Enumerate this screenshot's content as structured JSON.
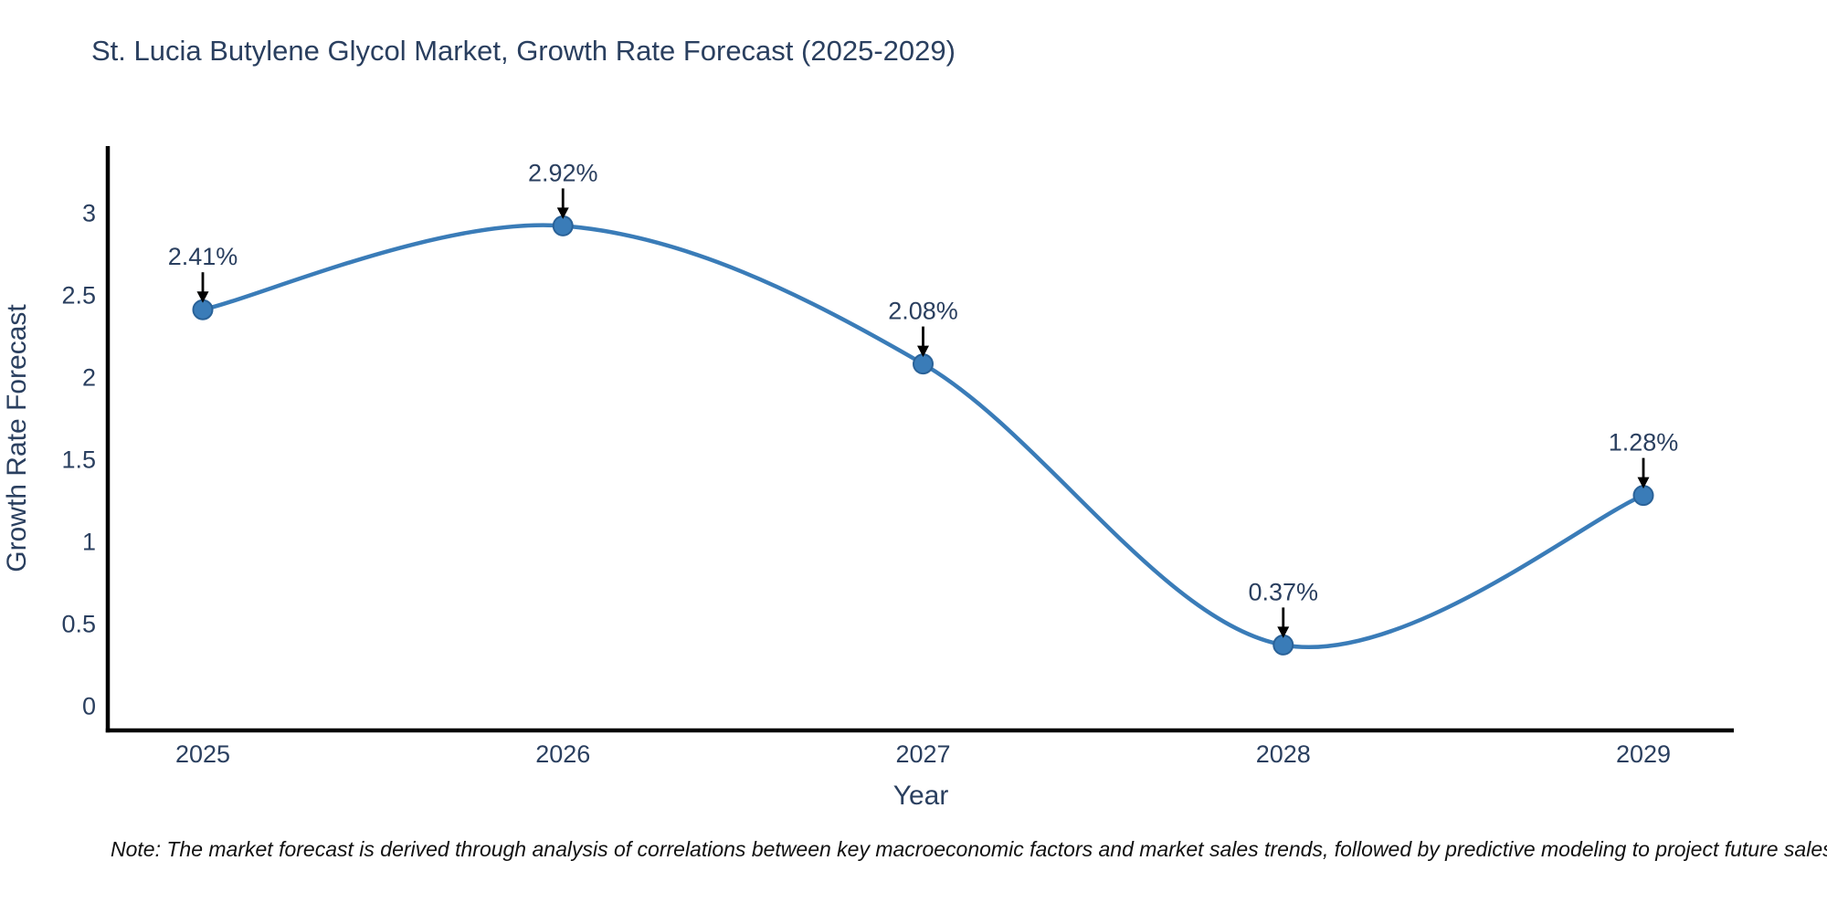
{
  "chart_data": {
    "type": "line",
    "title": "St. Lucia Butylene Glycol Market, Growth Rate Forecast (2025-2029)",
    "xlabel": "Year",
    "ylabel": "Growth Rate Forecast",
    "x": [
      2025,
      2026,
      2027,
      2028,
      2029
    ],
    "x_tick_labels": [
      "2025",
      "2026",
      "2027",
      "2028",
      "2029"
    ],
    "series": [
      {
        "name": "Growth Rate Forecast",
        "values": [
          2.41,
          2.92,
          2.08,
          0.37,
          1.28
        ]
      }
    ],
    "point_labels": [
      "2.41%",
      "2.92%",
      "2.08%",
      "0.37%",
      "1.28%"
    ],
    "y_ticks": [
      0,
      0.5,
      1,
      1.5,
      2,
      2.5,
      3
    ],
    "ylim": [
      -0.15,
      3.4
    ],
    "grid": false,
    "legend_position": "none",
    "line_shape": "spline",
    "colors": {
      "line": "#3a7cb8",
      "marker_fill": "#3a7cb8",
      "marker_stroke": "#2a6298",
      "axis": "#000000",
      "text": "#2a3f5f",
      "annotation_arrow": "#000000"
    }
  },
  "note": "Note: The market forecast is derived through analysis of correlations between key macroeconomic factors and market sales trends, followed by predictive modeling to project future sales"
}
